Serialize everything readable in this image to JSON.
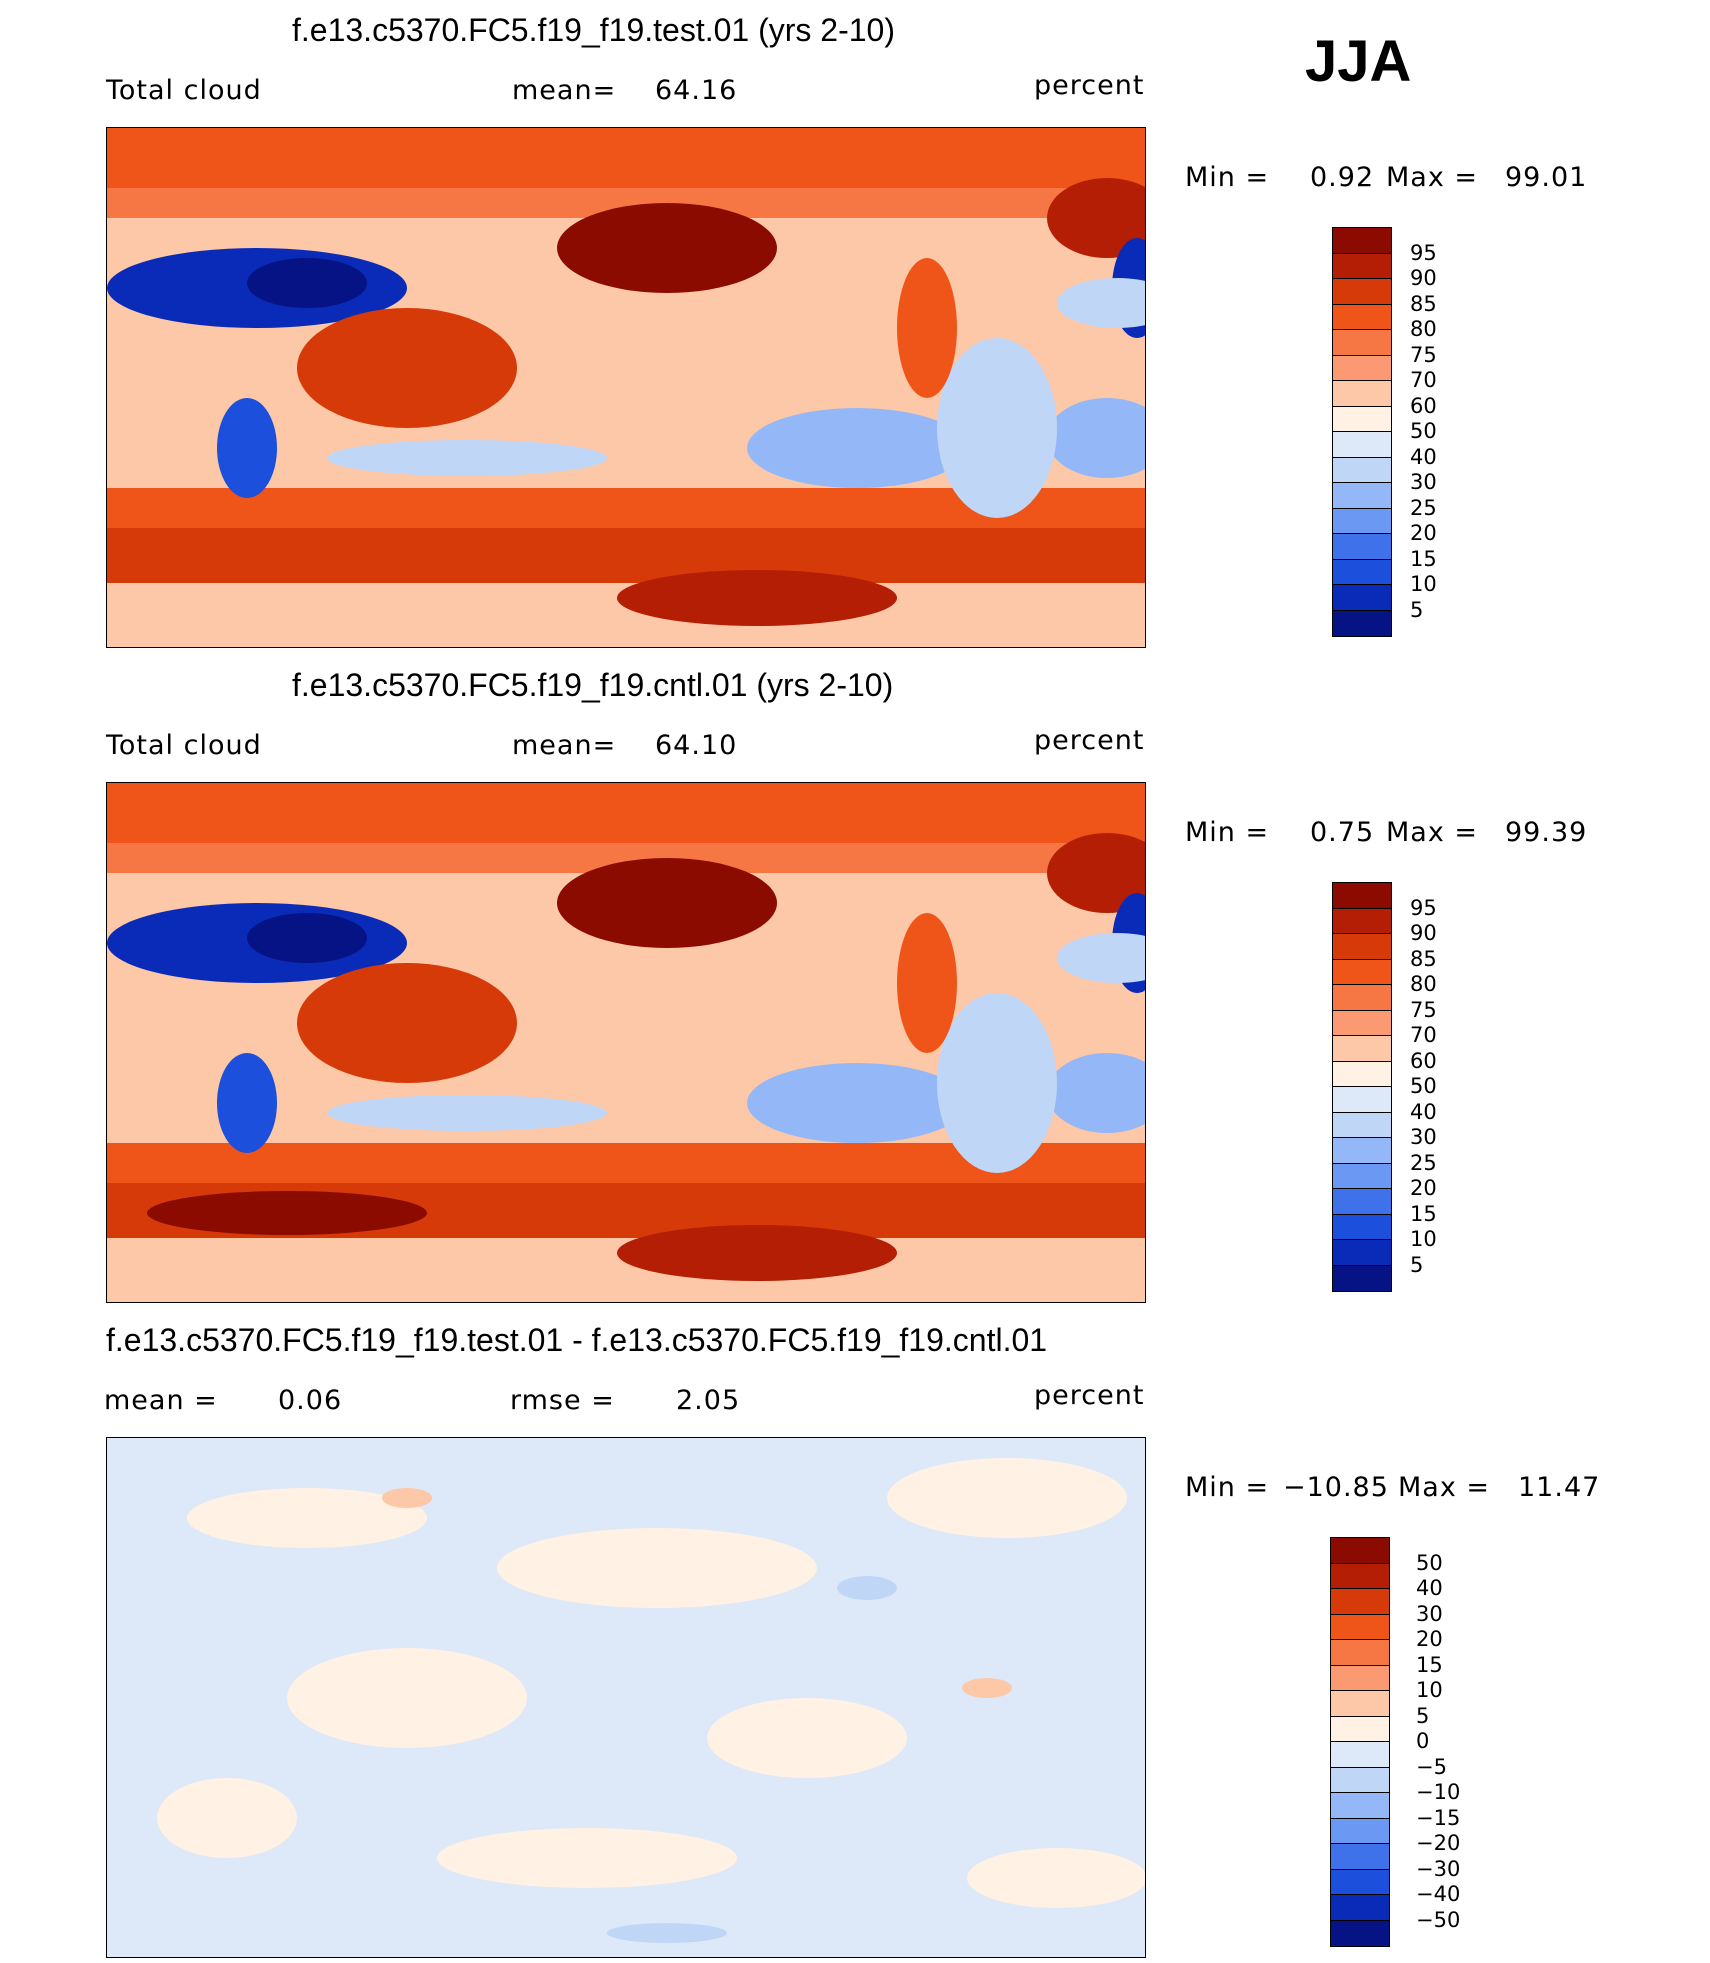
{
  "season": "JJA",
  "panels": [
    {
      "title": "f.e13.c5370.FC5.f19_f19.test.01 (yrs 2-10)",
      "left_label": "Total cloud",
      "mid_label": "mean=",
      "mid_value": "64.16",
      "units": "percent",
      "min_label": "Min  =",
      "min_value": "0.92",
      "max_label": "Max  =",
      "max_value": "99.01"
    },
    {
      "title": "f.e13.c5370.FC5.f19_f19.cntl.01 (yrs 2-10)",
      "left_label": "Total cloud",
      "mid_label": "mean=",
      "mid_value": "64.10",
      "units": "percent",
      "min_label": "Min  =",
      "min_value": "0.75",
      "max_label": "Max  =",
      "max_value": "99.39"
    },
    {
      "title": "f.e13.c5370.FC5.f19_f19.test.01 - f.e13.c5370.FC5.f19_f19.cntl.01",
      "left_label": "mean  =",
      "left_value": "0.06",
      "mid_label": "rmse  =",
      "mid_value": "2.05",
      "units": "percent",
      "min_label": "Min  =",
      "min_value": "−10.85",
      "max_label": "Max  =",
      "max_value": "11.47"
    }
  ],
  "colorbars": {
    "absolute": {
      "labels": [
        "95",
        "90",
        "85",
        "80",
        "75",
        "70",
        "60",
        "50",
        "40",
        "30",
        "25",
        "20",
        "15",
        "10",
        "5"
      ],
      "colors": [
        "#8b0b00",
        "#b41e04",
        "#d63a09",
        "#ef5519",
        "#f77744",
        "#fb9a72",
        "#fdc8a8",
        "#fff1e3",
        "#dde9f8",
        "#c0d6f7",
        "#94b8f7",
        "#6a98f3",
        "#3f72ea",
        "#1b4fdc",
        "#0a2bb8",
        "#051384"
      ]
    },
    "difference": {
      "labels": [
        "50",
        "40",
        "30",
        "20",
        "15",
        "10",
        "5",
        "0",
        "−5",
        "−10",
        "−15",
        "−20",
        "−30",
        "−40",
        "−50"
      ],
      "colors": [
        "#8b0b00",
        "#b41e04",
        "#d63a09",
        "#ef5519",
        "#f77744",
        "#fb9a72",
        "#fdc8a8",
        "#fff1e3",
        "#dde9f8",
        "#c0d6f7",
        "#94b8f7",
        "#6a98f3",
        "#3f72ea",
        "#1b4fdc",
        "#0a2bb8",
        "#051384"
      ]
    }
  },
  "chart_data": [
    {
      "type": "heatmap",
      "title": "f.e13.c5370.FC5.f19_f19.test.01 (yrs 2-10)",
      "variable": "Total cloud",
      "units": "percent",
      "mean": 64.16,
      "min": 0.92,
      "max": 99.01,
      "levels": [
        5,
        10,
        15,
        20,
        25,
        30,
        40,
        50,
        60,
        70,
        75,
        80,
        85,
        90,
        95
      ]
    },
    {
      "type": "heatmap",
      "title": "f.e13.c5370.FC5.f19_f19.cntl.01 (yrs 2-10)",
      "variable": "Total cloud",
      "units": "percent",
      "mean": 64.1,
      "min": 0.75,
      "max": 99.39,
      "levels": [
        5,
        10,
        15,
        20,
        25,
        30,
        40,
        50,
        60,
        70,
        75,
        80,
        85,
        90,
        95
      ]
    },
    {
      "type": "heatmap",
      "title": "f.e13.c5370.FC5.f19_f19.test.01 - f.e13.c5370.FC5.f19_f19.cntl.01",
      "units": "percent",
      "mean": 0.06,
      "rmse": 2.05,
      "min": -10.85,
      "max": 11.47,
      "levels": [
        -50,
        -40,
        -30,
        -20,
        -15,
        -10,
        -5,
        0,
        5,
        10,
        15,
        20,
        30,
        40,
        50
      ]
    }
  ]
}
